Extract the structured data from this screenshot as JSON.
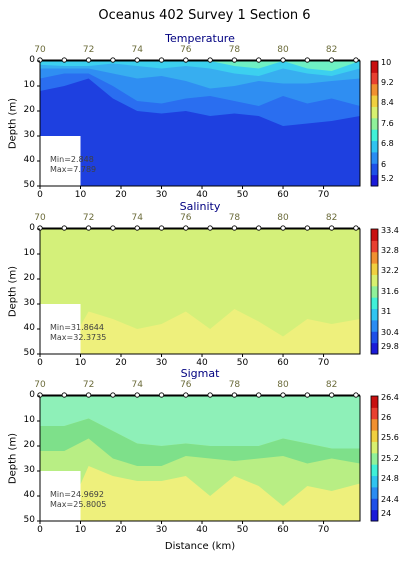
{
  "figure": {
    "title": "Oceanus 402 Survey 1 Section 6",
    "xlabel": "Distance (km)",
    "station_labels": [
      "70",
      "72",
      "74",
      "76",
      "78",
      "80",
      "82"
    ],
    "station_label_km": [
      0,
      12,
      24,
      36,
      48,
      60,
      72
    ],
    "station_marker_km": [
      0,
      6,
      12,
      18,
      24,
      30,
      36,
      42,
      48,
      54,
      60,
      66,
      72,
      78
    ]
  },
  "chart_data": [
    {
      "type": "heatmap",
      "title": "Temperature",
      "ylabel": "Depth (m)",
      "xlim": [
        0,
        79
      ],
      "ylim": [
        0,
        50
      ],
      "x_ticks": [
        0,
        10,
        20,
        30,
        40,
        50,
        60,
        70
      ],
      "y_ticks": [
        0,
        10,
        20,
        30,
        40,
        50
      ],
      "colorbar_ticks": [
        "10",
        "9.2",
        "8.4",
        "7.6",
        "6.8",
        "6",
        "5.2"
      ],
      "colorbar_range": [
        5.2,
        10
      ],
      "min_label": "Min=2.848",
      "max_label": "Max=7.789",
      "x": [
        0,
        6,
        12,
        18,
        24,
        30,
        36,
        42,
        48,
        54,
        60,
        66,
        72,
        78
      ],
      "layers": [
        {
          "value": 5.6,
          "color": "#1e40e0",
          "depth": [
            50,
            50,
            50,
            50,
            50,
            50,
            50,
            50,
            50,
            50,
            50,
            50,
            50,
            50
          ]
        },
        {
          "value": 6.0,
          "color": "#2a6ef0",
          "depth": [
            12,
            10,
            7,
            15,
            20,
            21,
            20,
            22,
            21,
            22,
            26,
            25,
            24,
            22
          ]
        },
        {
          "value": 6.4,
          "color": "#2f8ef2",
          "depth": [
            7,
            5,
            5,
            10,
            16,
            17,
            15,
            14,
            16,
            18,
            14,
            17,
            15,
            18
          ]
        },
        {
          "value": 6.8,
          "color": "#37aef0",
          "depth": [
            3,
            3,
            3,
            5,
            7,
            6,
            8,
            11,
            10,
            8,
            9,
            9,
            8,
            7
          ]
        },
        {
          "value": 7.2,
          "color": "#3cd0ef",
          "depth": [
            1.5,
            2,
            2,
            1,
            2,
            3,
            2,
            3,
            5,
            6,
            3,
            5,
            6,
            3
          ]
        },
        {
          "value": 7.6,
          "color": "#6ef0c4",
          "depth": [
            0,
            0,
            0,
            0,
            0,
            0,
            0,
            0,
            2,
            3,
            0,
            3,
            4,
            0
          ]
        }
      ],
      "blank_patch": {
        "x": [
          0,
          10
        ],
        "y": [
          30,
          50
        ]
      },
      "colors": [
        "#1a1ad8",
        "#1e50e8",
        "#2a8cf2",
        "#30c4f0",
        "#40f0d8",
        "#90f09a",
        "#d8f070",
        "#f0d040",
        "#f09030",
        "#e84030",
        "#c81010"
      ]
    },
    {
      "type": "heatmap",
      "title": "Salinity",
      "ylabel": "Depth (m)",
      "xlim": [
        0,
        79
      ],
      "ylim": [
        0,
        50
      ],
      "x_ticks": [
        0,
        10,
        20,
        30,
        40,
        50,
        60,
        70
      ],
      "y_ticks": [
        0,
        10,
        20,
        30,
        40,
        50
      ],
      "colorbar_ticks": [
        "33.4",
        "32.8",
        "32.2",
        "31.6",
        "31",
        "30.4",
        "29.8"
      ],
      "colorbar_range": [
        29.8,
        33.4
      ],
      "min_label": "Min=31.8644",
      "max_label": "Max=32.3735",
      "x": [
        0,
        6,
        12,
        18,
        24,
        30,
        36,
        42,
        48,
        54,
        60,
        66,
        72,
        78
      ],
      "layers": [
        {
          "value": 32.0,
          "color": "#d4f07a",
          "depth": [
            50,
            50,
            50,
            50,
            50,
            50,
            50,
            50,
            50,
            50,
            50,
            50,
            50,
            50
          ]
        },
        {
          "value": 32.3,
          "color": "#eef07c",
          "depth": [
            50,
            50,
            33,
            36,
            40,
            38,
            33,
            40,
            32,
            37,
            43,
            36,
            38,
            36
          ]
        }
      ],
      "blank_patch": {
        "x": [
          0,
          10
        ],
        "y": [
          30,
          50
        ]
      },
      "colors": [
        "#1a1ad8",
        "#1e50e8",
        "#2a8cf2",
        "#30c4f0",
        "#40f0d8",
        "#90f09a",
        "#d8f070",
        "#f0d040",
        "#f09030",
        "#e84030",
        "#c81010"
      ]
    },
    {
      "type": "heatmap",
      "title": "Sigmat",
      "ylabel": "Depth (m)",
      "xlim": [
        0,
        79
      ],
      "ylim": [
        0,
        50
      ],
      "x_ticks": [
        0,
        10,
        20,
        30,
        40,
        50,
        60,
        70
      ],
      "y_ticks": [
        0,
        10,
        20,
        30,
        40,
        50
      ],
      "colorbar_ticks": [
        "26.4",
        "26",
        "25.6",
        "25.2",
        "24.8",
        "24.4",
        "24"
      ],
      "colorbar_range": [
        24,
        26.4
      ],
      "min_label": "Min=24.9692",
      "max_label": "Max=25.8005",
      "x": [
        0,
        6,
        12,
        18,
        24,
        30,
        36,
        42,
        48,
        54,
        60,
        66,
        72,
        78
      ],
      "layers": [
        {
          "value": 25.0,
          "color": "#8ef0b8",
          "depth": [
            50,
            50,
            50,
            50,
            50,
            50,
            50,
            50,
            50,
            50,
            50,
            50,
            50,
            50
          ]
        },
        {
          "value": 25.3,
          "color": "#7ee08a",
          "depth": [
            50,
            50,
            50,
            50,
            50,
            50,
            50,
            50,
            50,
            50,
            50,
            50,
            50,
            50
          ]
        },
        {
          "value": 25.5,
          "color": "#b8ee84",
          "depth": [
            50,
            50,
            50,
            50,
            50,
            50,
            50,
            50,
            50,
            50,
            50,
            50,
            50,
            50
          ]
        },
        {
          "value": 25.7,
          "color": "#eef07c",
          "depth": [
            50,
            50,
            28,
            32,
            34,
            34,
            32,
            40,
            32,
            36,
            44,
            36,
            38,
            35
          ]
        }
      ],
      "bands": [
        {
          "color": "#8ef0b8",
          "top": [
            0,
            0,
            0,
            0,
            0,
            0,
            0,
            0,
            0,
            0,
            0,
            0,
            0,
            0
          ],
          "bottom": [
            12,
            12,
            9,
            14,
            19,
            20,
            19,
            20,
            20,
            20,
            17,
            19,
            21,
            21
          ]
        },
        {
          "color": "#7ee08a",
          "top": [
            12,
            12,
            9,
            14,
            19,
            20,
            19,
            20,
            20,
            20,
            17,
            19,
            21,
            21
          ],
          "bottom": [
            22,
            22,
            17,
            25,
            28,
            28,
            24,
            25,
            26,
            25,
            24,
            27,
            25,
            27
          ]
        }
      ],
      "blank_patch": {
        "x": [
          0,
          10
        ],
        "y": [
          30,
          50
        ]
      },
      "colors": [
        "#1a1ad8",
        "#1e50e8",
        "#2a8cf2",
        "#30c4f0",
        "#40f0d8",
        "#90f09a",
        "#d8f070",
        "#f0d040",
        "#f09030",
        "#e84030",
        "#c81010"
      ]
    }
  ]
}
